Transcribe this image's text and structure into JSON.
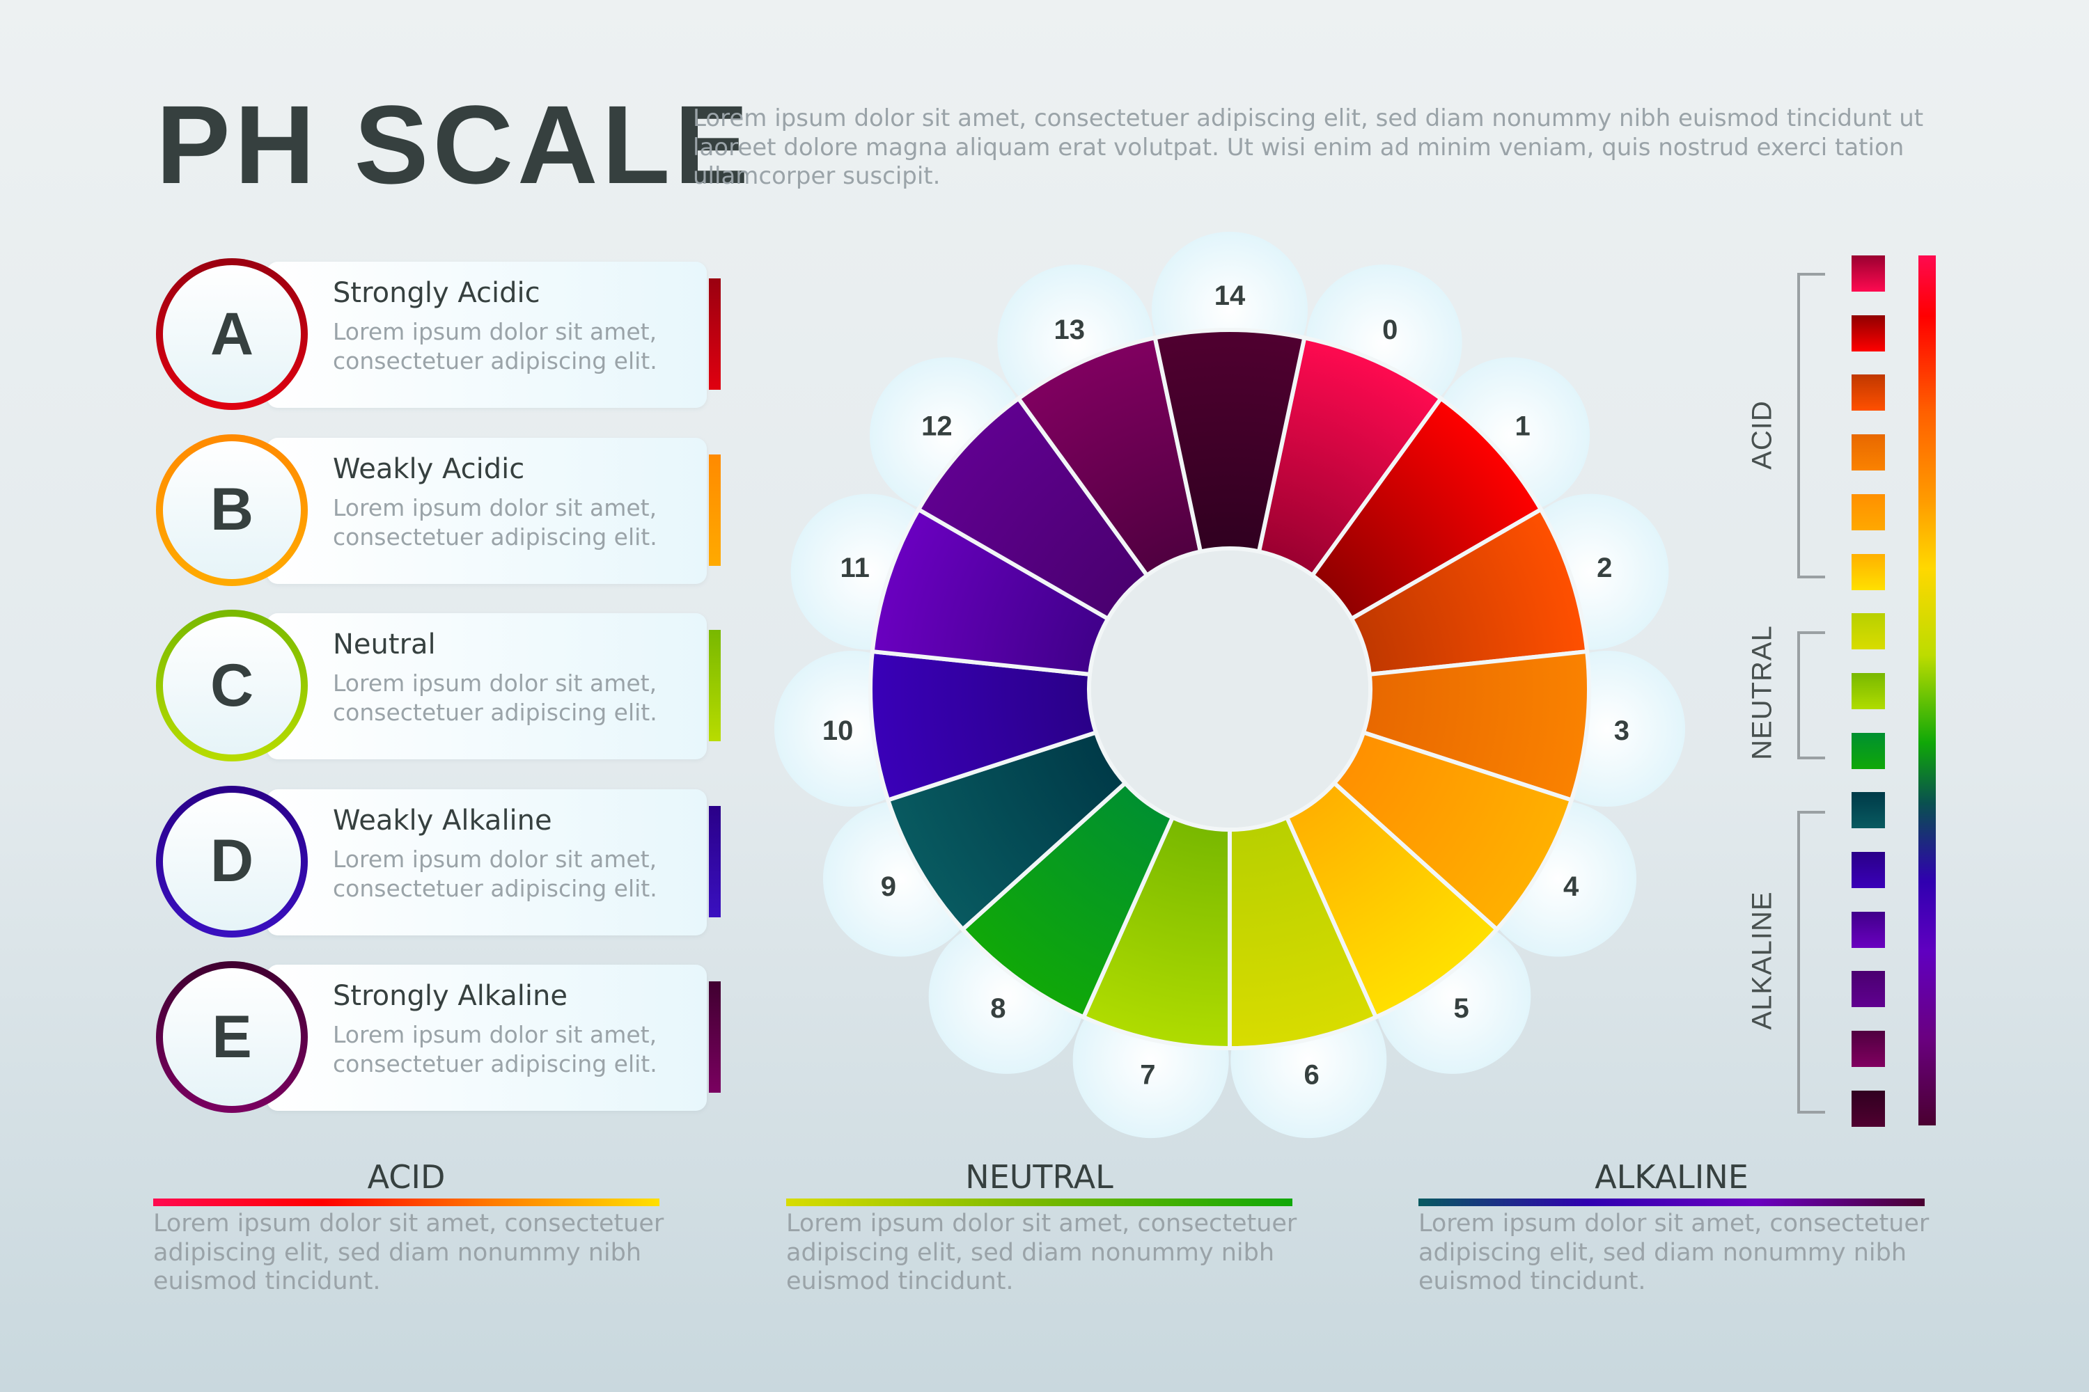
{
  "header": {
    "title": "PH SCALE",
    "description": "Lorem ipsum dolor sit amet, consectetuer adipiscing elit, sed diam nonummy nibh euismod tincidunt ut laoreet dolore magna aliquam erat volutpat. Ut wisi enim ad minim veniam, quis nostrud exerci tation ullamcorper suscipit."
  },
  "categories": [
    {
      "letter": "A",
      "title": "Strongly Acidic",
      "description": "Lorem ipsum dolor sit amet, consectetuer adipiscing elit.",
      "color": "#e00010",
      "color_dark": "#9a0010"
    },
    {
      "letter": "B",
      "title": "Weakly Acidic",
      "description": "Lorem ipsum dolor sit amet, consectetuer adipiscing elit.",
      "color": "#ffaa00",
      "color_dark": "#ff8a00"
    },
    {
      "letter": "C",
      "title": "Neutral",
      "description": "Lorem ipsum dolor sit amet, consectetuer adipiscing elit.",
      "color": "#b8dc00",
      "color_dark": "#78b800"
    },
    {
      "letter": "D",
      "title": "Weakly Alkaline",
      "description": "Lorem ipsum dolor sit amet, consectetuer adipiscing elit.",
      "color": "#3a10c0",
      "color_dark": "#2a0088"
    },
    {
      "letter": "E",
      "title": "Strongly Alkaline",
      "description": "Lorem ipsum dolor sit amet, consectetuer adipiscing elit.",
      "color": "#7a0060",
      "color_dark": "#400030"
    }
  ],
  "wheel": {
    "segments": [
      {
        "label": "0",
        "outer": "#ff0a50",
        "inner": "#9a0030"
      },
      {
        "label": "1",
        "outer": "#ff0000",
        "inner": "#900000"
      },
      {
        "label": "2",
        "outer": "#ff5000",
        "inner": "#c03800"
      },
      {
        "label": "3",
        "outer": "#fa8200",
        "inner": "#e86800"
      },
      {
        "label": "4",
        "outer": "#ffb000",
        "inner": "#ff9000"
      },
      {
        "label": "5",
        "outer": "#ffe000",
        "inner": "#ffb000"
      },
      {
        "label": "6",
        "outer": "#d8dc00",
        "inner": "#b8d000"
      },
      {
        "label": "7",
        "outer": "#b0dc00",
        "inner": "#78b800"
      },
      {
        "label": "8",
        "outer": "#10a808",
        "inner": "#009030"
      },
      {
        "label": "9",
        "outer": "#085a60",
        "inner": "#003a48"
      },
      {
        "label": "10",
        "outer": "#3a00b8",
        "inner": "#2a0088"
      },
      {
        "label": "11",
        "outer": "#6a00c0",
        "inner": "#40008a"
      },
      {
        "label": "12",
        "outer": "#600090",
        "inner": "#4a0070"
      },
      {
        "label": "13",
        "outer": "#800060",
        "inner": "#500040"
      },
      {
        "label": "14",
        "outer": "#500030",
        "inner": "#300020"
      }
    ]
  },
  "scale": {
    "swatches": [
      {
        "top": "#9a0030",
        "bottom": "#ff0a50"
      },
      {
        "top": "#900000",
        "bottom": "#ff0000"
      },
      {
        "top": "#c03800",
        "bottom": "#ff5000"
      },
      {
        "top": "#e86800",
        "bottom": "#fa8200"
      },
      {
        "top": "#ff9000",
        "bottom": "#ffa800"
      },
      {
        "top": "#ffb000",
        "bottom": "#ffe000"
      },
      {
        "top": "#b8d000",
        "bottom": "#d8dc00"
      },
      {
        "top": "#78b800",
        "bottom": "#b0dc00"
      },
      {
        "top": "#009030",
        "bottom": "#10a808"
      },
      {
        "top": "#003a48",
        "bottom": "#085a60"
      },
      {
        "top": "#2a0088",
        "bottom": "#3a00b8"
      },
      {
        "top": "#40008a",
        "bottom": "#6a00c0"
      },
      {
        "top": "#4a0070",
        "bottom": "#600090"
      },
      {
        "top": "#500040",
        "bottom": "#800060"
      },
      {
        "top": "#300020",
        "bottom": "#500030"
      }
    ],
    "groups": [
      {
        "label": "ACID"
      },
      {
        "label": "NEUTRAL"
      },
      {
        "label": "ALKALINE"
      }
    ]
  },
  "footer": [
    {
      "title": "ACID",
      "text": "Lorem ipsum dolor sit amet, consectetuer adipiscing elit, sed diam nonummy nibh euismod tincidunt.",
      "gradient": [
        "#ff0a50",
        "#ff0000",
        "#ff7a00",
        "#ffe000"
      ]
    },
    {
      "title": "NEUTRAL",
      "text": "Lorem ipsum dolor sit amet, consectetuer adipiscing elit, sed diam nonummy nibh euismod tincidunt.",
      "gradient": [
        "#d8dc00",
        "#78b800",
        "#10a808"
      ]
    },
    {
      "title": "ALKALINE",
      "text": "Lorem ipsum dolor sit amet, consectetuer adipiscing elit, sed diam nonummy nibh euismod tincidunt.",
      "gradient": [
        "#085a60",
        "#3000b0",
        "#6a00c0",
        "#4a0030"
      ]
    }
  ]
}
